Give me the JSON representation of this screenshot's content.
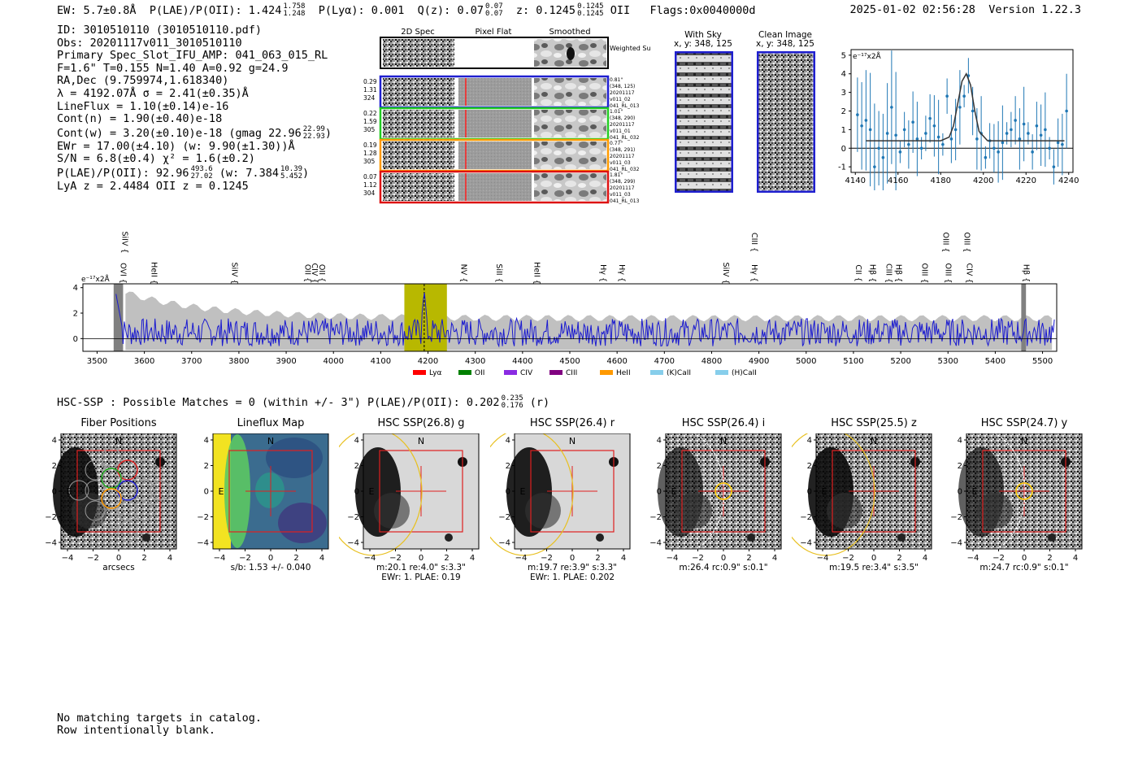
{
  "header": {
    "ew": "EW: 5.7±0.8Å",
    "plae_label": "P(LAE)/P(OII): 1.424",
    "plae_hi": "1.758",
    "plae_lo": "1.248",
    "plya": "P(Lyα): 0.001",
    "q": "Q(z): 0.07",
    "q_hi": "0.07",
    "q_lo": "0.07",
    "z": "z: 0.1245",
    "z_hi": "0.1245",
    "z_lo": "0.1245",
    "z_line": "OII",
    "flags": "Flags:0x0040000d",
    "timestamp": "2025-01-02 02:56:28",
    "version": "Version 1.22.3"
  },
  "info": {
    "id": "ID: 3010510110 (3010510110.pdf)",
    "obs": "Obs: 20201117v011_3010510110",
    "primary": "Primary Spec_Slot_IFU_AMP: 041_063_015_RL",
    "params": "F=1.6\"  T=0.155  N=1.40  A=0.92  g=24.9",
    "radec": "RA,Dec (9.759974,1.618340)",
    "lambda": "λ = 4192.07Å   σ = 2.41(±0.35)Å",
    "lineflux": "LineFlux = 1.10(±0.14)e-16",
    "contn": "Cont(n) = 1.90(±0.40)e-18",
    "contw": "Cont(w) = 3.20(±0.10)e-18 (gmag 22.96",
    "contw_hi": "22.99",
    "contw_lo": "22.93",
    "ewr": "EWr = 17.00(±4.10) (w: 9.90(±1.30))Å",
    "sn": "S/N = 6.8(±0.4)  χ² = 1.6(±0.2)",
    "plae": "P(LAE)/P(OII): 92.96",
    "plae_hi": "493.6",
    "plae_lo": "27.02",
    "plae_w": "(w: 7.384",
    "plae_w_hi": "10.39",
    "plae_w_lo": "5.452",
    "lya_z": "LyA z = 2.4484   OII z = 0.1245"
  },
  "cutouts": {
    "col_titles": [
      "2D Spec",
      "Pixel Flat",
      "Smoothed"
    ],
    "weighted_sum": "Weighted Sum",
    "rows": [
      {
        "left": [
          "0.29",
          "1.31",
          "324"
        ],
        "right": [
          "0.81\"",
          "(348, 125)",
          "20201117",
          "v011_02",
          "041_RL_013"
        ],
        "color": "#1f1fd0"
      },
      {
        "left": [
          "0.22",
          "1.59",
          "305"
        ],
        "right": [
          "1.01\"",
          "(348, 290)",
          "20201117",
          "v011_01",
          "041_RL_032"
        ],
        "color": "#22cc22"
      },
      {
        "left": [
          "0.19",
          "1.28",
          "305"
        ],
        "right": [
          "0.77\"",
          "(348, 291)",
          "20201117",
          "v011_03",
          "041_RL_032"
        ],
        "color": "#ff9900"
      },
      {
        "left": [
          "0.07",
          "1.12",
          "304"
        ],
        "right": [
          "1.81\"",
          "(348, 299)",
          "20201117",
          "v011_03",
          "041_RL_013"
        ],
        "color": "#dd1111"
      }
    ]
  },
  "sky": {
    "with_sky_title": "With Sky",
    "with_sky_sub": "x, y: 348, 125",
    "clean_title": "Clean Image",
    "clean_sub": "x, y: 348, 125"
  },
  "zoom_chart": {
    "unit": "e⁻¹⁷x2Å",
    "x_ticks": [
      "4140",
      "4160",
      "4180",
      "4200",
      "4220",
      "4240"
    ],
    "y_ticks": [
      "5",
      "4",
      "3",
      "2",
      "1",
      "0",
      "-1"
    ]
  },
  "chart_data": [
    {
      "type": "line",
      "title": "",
      "xlabel": "",
      "ylabel": "e⁻¹⁷x2Å",
      "xlim": [
        4138,
        4242
      ],
      "ylim": [
        -1.3,
        5.3
      ],
      "series": [
        {
          "name": "data",
          "x": [
            4141,
            4143,
            4145,
            4147,
            4149,
            4151,
            4153,
            4155,
            4157,
            4159,
            4161,
            4163,
            4165,
            4167,
            4169,
            4171,
            4173,
            4175,
            4177,
            4179,
            4181,
            4183,
            4185,
            4187,
            4189,
            4191,
            4193,
            4195,
            4197,
            4199,
            4201,
            4203,
            4205,
            4207,
            4209,
            4211,
            4213,
            4215,
            4217,
            4219,
            4221,
            4223,
            4225,
            4227,
            4229,
            4231,
            4233,
            4235,
            4237,
            4239
          ],
          "y": [
            1.8,
            1.2,
            1.5,
            1.0,
            -1.0,
            0.0,
            -0.5,
            0.8,
            2.2,
            0.7,
            -0.2,
            1.0,
            0.2,
            1.4,
            0.5,
            0.0,
            0.8,
            1.6,
            1.2,
            0.6,
            0.2,
            2.8,
            0.5,
            1.0,
            2.2,
            2.8,
            3.9,
            2.0,
            0.5,
            0.8,
            -0.5,
            0.4,
            0.0,
            -0.2,
            0.3,
            0.8,
            1.0,
            1.5,
            0.5,
            1.3,
            0.8,
            -0.2,
            1.2,
            0.7,
            1.0,
            0.0,
            -1.0,
            0.3,
            0.2,
            2.0
          ]
        },
        {
          "name": "fit",
          "x": [
            4145,
            4180,
            4184,
            4186,
            4188,
            4190,
            4192,
            4194,
            4196,
            4198,
            4202,
            4238
          ],
          "y": [
            0.4,
            0.4,
            0.6,
            1.2,
            2.4,
            3.6,
            4.0,
            3.4,
            2.0,
            0.9,
            0.4,
            0.4
          ]
        }
      ]
    },
    {
      "type": "line",
      "title": "",
      "xlabel": "",
      "ylabel": "e⁻¹⁷x2Å",
      "xlim": [
        3500,
        5530
      ],
      "ylim": [
        -1,
        4.3
      ],
      "x_ticks": [
        3500,
        3600,
        3700,
        3800,
        3900,
        4000,
        4100,
        4200,
        4300,
        4400,
        4500,
        4600,
        4700,
        4800,
        4900,
        5000,
        5100,
        5200,
        5300,
        5400,
        5500
      ],
      "y_ticks": [
        0,
        2,
        4
      ],
      "highlight": [
        4150,
        4240
      ],
      "line_center": 4192,
      "grey_bands": [
        [
          3535,
          3555
        ],
        [
          5455,
          5465
        ]
      ],
      "series": [
        {
          "name": "spectrum",
          "x_start": 3540,
          "x_end": 5525,
          "y_peak": 4.2,
          "noise": 0.6
        }
      ]
    }
  ],
  "spectrum_lines": [
    {
      "name": "SiIV",
      "x": 3548,
      "color": "#ff9900",
      "row": 0
    },
    {
      "name": "OVI",
      "x": 3545,
      "color": "#dd1111",
      "row": 1
    },
    {
      "name": "HeII",
      "x": 3610,
      "color": "#7b1fa2",
      "row": 1
    },
    {
      "name": "SiIV",
      "x": 3780,
      "color": "#8a2be2",
      "row": 1
    },
    {
      "name": "OII",
      "x": 3935,
      "color": "#87ceeb",
      "row": 1
    },
    {
      "name": "CIV",
      "x": 3950,
      "color": "#ff9900",
      "row": 1
    },
    {
      "name": "OII",
      "x": 3965,
      "color": "#ff9900",
      "row": 1
    },
    {
      "name": "NV",
      "x": 4265,
      "color": "#dd1111",
      "row": 1
    },
    {
      "name": "SiII",
      "x": 4340,
      "color": "#dd1111",
      "row": 1
    },
    {
      "name": "HeII",
      "x": 4420,
      "color": "#8a2be2",
      "row": 1
    },
    {
      "name": "Hγ",
      "x": 4560,
      "color": "#87ceeb",
      "row": 1
    },
    {
      "name": "Hγ",
      "x": 4600,
      "color": "#87ceeb",
      "row": 1
    },
    {
      "name": "SiIV",
      "x": 4820,
      "color": "#dd1111",
      "row": 1
    },
    {
      "name": "CIII",
      "x": 4880,
      "color": "#ff9900",
      "row": 0
    },
    {
      "name": "Hγ",
      "x": 4880,
      "color": "#228b22",
      "row": 1
    },
    {
      "name": "CII",
      "x": 5100,
      "color": "#8a2be2",
      "row": 1
    },
    {
      "name": "Hβ",
      "x": 5130,
      "color": "#87ceeb",
      "row": 1
    },
    {
      "name": "CIII",
      "x": 5165,
      "color": "#8a2be2",
      "row": 1
    },
    {
      "name": "Hβ",
      "x": 5185,
      "color": "#87ceeb",
      "row": 1
    },
    {
      "name": "OIII",
      "x": 5240,
      "color": "#87ceeb",
      "row": 1
    },
    {
      "name": "OIII",
      "x": 5285,
      "color": "#87ceeb",
      "row": 0
    },
    {
      "name": "OIII",
      "x": 5290,
      "color": "#87ceeb",
      "row": 1
    },
    {
      "name": "OIII",
      "x": 5330,
      "color": "#87ceeb",
      "row": 0
    },
    {
      "name": "CIV",
      "x": 5335,
      "color": "#dd1111",
      "row": 1
    },
    {
      "name": "Hβ",
      "x": 5455,
      "color": "#228b22",
      "row": 1
    }
  ],
  "legend": [
    {
      "label": "Lyα",
      "color": "#ff0000"
    },
    {
      "label": "OII",
      "color": "#008000"
    },
    {
      "label": "CIV",
      "color": "#8a2be2"
    },
    {
      "label": "CIII",
      "color": "#800080"
    },
    {
      "label": "HeII",
      "color": "#ff9900"
    },
    {
      "label": "(K)CaII",
      "color": "#87ceeb"
    },
    {
      "label": "(H)CaII",
      "color": "#87ceeb"
    }
  ],
  "hsc": {
    "summary": "HSC-SSP : Possible Matches = 0 (within +/- 3\")  P(LAE)/P(OII): 0.202",
    "summary_hi": "0.235",
    "summary_lo": "0.176",
    "summary_band": "(r)",
    "x_ticks": [
      "−4",
      "−2",
      "0",
      "2",
      "4"
    ],
    "y_ticks": [
      "4",
      "2",
      "0",
      "−2",
      "−4"
    ],
    "north": "N",
    "east": "E",
    "panels": [
      {
        "title": "Fiber Positions",
        "cap1": "arcsecs",
        "cap2": ""
      },
      {
        "title": "Lineflux Map",
        "cap1": "s/b: 1.53 +/- 0.040",
        "cap2": ""
      },
      {
        "title": "HSC SSP(26.8) g",
        "cap1": "m:20.1  re:4.0\"  s:3.3\"",
        "cap2": "EWr: 1. PLAE: 0.19"
      },
      {
        "title": "HSC SSP(26.4) r",
        "cap1": "m:19.7  re:3.9\"  s:3.3\"",
        "cap2": "EWr: 1. PLAE: 0.202"
      },
      {
        "title": "HSC SSP(26.4) i",
        "cap1": "m:26.4 rc:0.9\"  s:0.1\"",
        "cap2": ""
      },
      {
        "title": "HSC SSP(25.5) z",
        "cap1": "m:19.5  re:3.4\"  s:3.5\"",
        "cap2": ""
      },
      {
        "title": "HSC SSP(24.7) y",
        "cap1": "m:24.7 rc:0.9\"  s:0.1\"",
        "cap2": ""
      }
    ]
  },
  "footer": {
    "line1": "No matching targets in catalog.",
    "line2": "Row intentionally blank."
  }
}
